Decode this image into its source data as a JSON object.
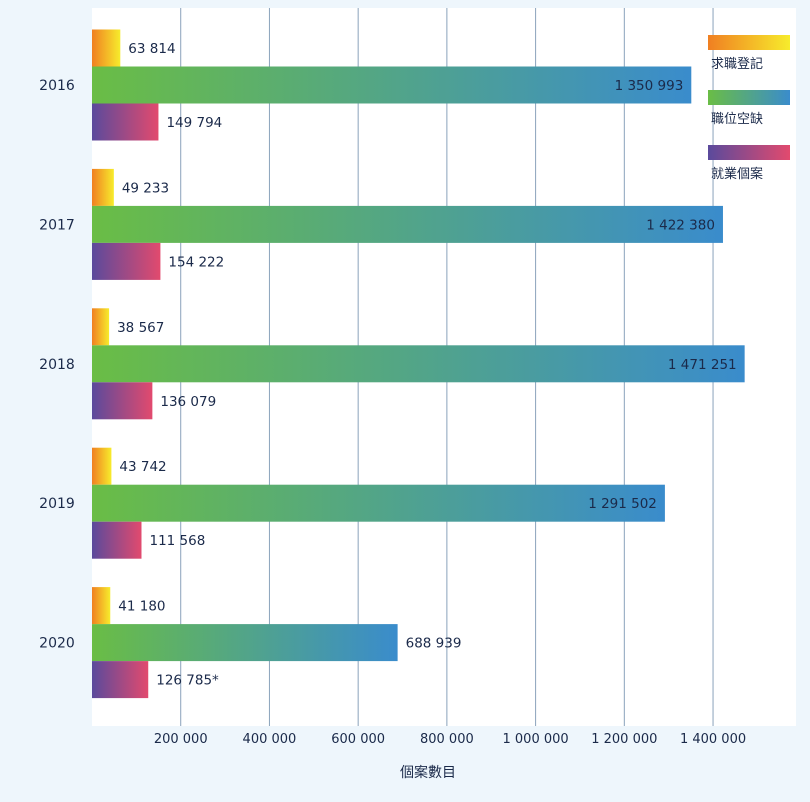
{
  "chart_data": {
    "type": "bar",
    "orientation": "horizontal",
    "categories": [
      "2016",
      "2017",
      "2018",
      "2019",
      "2020"
    ],
    "series": [
      {
        "name": "求職登記",
        "values": [
          63814,
          49233,
          38567,
          43742,
          41180
        ],
        "labels": [
          "63 814",
          "49 233",
          "38 567",
          "43 742",
          "41 180"
        ],
        "colors": [
          "#f07f22",
          "#f7ec2c"
        ]
      },
      {
        "name": "職位空缺",
        "values": [
          1350993,
          1422380,
          1471251,
          1291502,
          688939
        ],
        "labels": [
          "1 350 993",
          "1 422 380",
          "1 471 251",
          "1 291 502",
          "688 939"
        ],
        "colors": [
          "#6abd45",
          "#3a8ccc"
        ]
      },
      {
        "name": "就業個案",
        "values": [
          149794,
          154222,
          136079,
          111568,
          126785
        ],
        "labels": [
          "149 794",
          "154 222",
          "136 079",
          "111 568",
          "126 785*"
        ],
        "colors": [
          "#5a4a9c",
          "#e24a6e"
        ]
      }
    ],
    "x_ticks": [
      200000,
      400000,
      600000,
      800000,
      1000000,
      1200000,
      1400000
    ],
    "x_tick_labels": [
      "200 000",
      "400 000",
      "600 000",
      "800 000",
      "1 000 000",
      "1 200 000",
      "1 400 000"
    ],
    "xlim": [
      0,
      1580000
    ],
    "xlabel": "個案數目",
    "ylabel": "",
    "title": "",
    "grid": "vertical",
    "legend_position": "top-right"
  }
}
